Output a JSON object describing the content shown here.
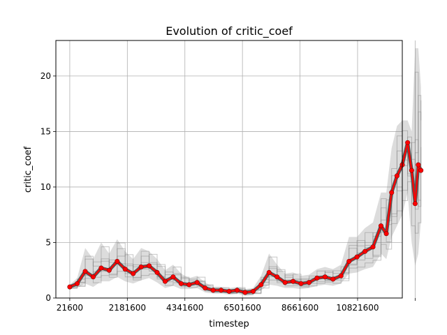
{
  "chart_data": {
    "type": "line",
    "title": "Evolution of critic_coef",
    "xlabel": "timestep",
    "ylabel": "critic_coef",
    "xlim": [
      -500000,
      12500000
    ],
    "ylim": [
      0,
      23.2
    ],
    "xticks": [
      21600,
      2181600,
      4341600,
      6501600,
      8661600,
      10821600,
      12981600
    ],
    "xtick_labels": [
      "21600",
      "2181600",
      "4341600",
      "6501600",
      "8661600",
      "10821600",
      ""
    ],
    "yticks": [
      0,
      5,
      10,
      15,
      20
    ],
    "ytick_labels": [
      "0",
      "5",
      "10",
      "15",
      "20"
    ],
    "grid": true,
    "series": [
      {
        "role": "mean",
        "color": "#ff0000",
        "x": [
          21600,
          300000,
          600000,
          900000,
          1200000,
          1500000,
          1800000,
          2100000,
          2400000,
          2700000,
          3000000,
          3300000,
          3600000,
          3900000,
          4200000,
          4500000,
          4800000,
          5100000,
          5400000,
          5700000,
          6000000,
          6300000,
          6600000,
          6900000,
          7200000,
          7500000,
          7800000,
          8100000,
          8400000,
          8700000,
          9000000,
          9300000,
          9600000,
          9900000,
          10200000,
          10500000,
          10800000,
          11100000,
          11400000,
          11700000,
          11900000,
          12100000,
          12300000,
          12500000,
          12700000,
          12850000,
          12981600,
          13100000,
          13200000
        ],
        "y": [
          1.0,
          1.3,
          2.4,
          1.9,
          2.7,
          2.5,
          3.3,
          2.6,
          2.2,
          2.8,
          2.9,
          2.3,
          1.5,
          1.9,
          1.3,
          1.2,
          1.4,
          0.9,
          0.7,
          0.7,
          0.6,
          0.7,
          0.5,
          0.6,
          1.2,
          2.3,
          1.9,
          1.4,
          1.5,
          1.3,
          1.4,
          1.8,
          1.9,
          1.7,
          2.0,
          3.3,
          3.7,
          4.2,
          4.6,
          6.5,
          5.8,
          9.5,
          11.0,
          12.0,
          14.0,
          11.5,
          8.5,
          12.0,
          11.5
        ]
      }
    ],
    "band": {
      "role": "individual runs",
      "color": "#808080",
      "upper": [
        1.2,
        1.8,
        4.5,
        3.5,
        5.0,
        4.0,
        5.3,
        4.2,
        3.5,
        4.5,
        4.2,
        3.5,
        2.5,
        3.0,
        2.2,
        1.8,
        2.0,
        1.4,
        1.0,
        1.0,
        0.9,
        1.0,
        0.8,
        0.9,
        2.0,
        4.0,
        3.0,
        2.2,
        2.3,
        2.0,
        2.1,
        2.6,
        2.8,
        2.6,
        3.0,
        5.5,
        5.5,
        6.3,
        6.8,
        9.5,
        9.5,
        13.5,
        15.5,
        16.0,
        16.0,
        15.0,
        22.5,
        22.5,
        19.0
      ],
      "lower": [
        0.8,
        0.9,
        1.3,
        1.0,
        1.5,
        1.5,
        1.9,
        1.5,
        1.3,
        1.6,
        1.8,
        1.4,
        0.9,
        1.1,
        0.8,
        0.8,
        0.9,
        0.5,
        0.4,
        0.4,
        0.3,
        0.4,
        0.2,
        0.3,
        0.7,
        1.2,
        1.1,
        0.9,
        0.9,
        0.8,
        0.9,
        1.1,
        1.2,
        1.1,
        1.3,
        2.2,
        2.3,
        2.6,
        2.8,
        4.0,
        3.5,
        5.5,
        6.5,
        7.5,
        9.5,
        5.0,
        2.9,
        4.0,
        7.0
      ]
    }
  }
}
